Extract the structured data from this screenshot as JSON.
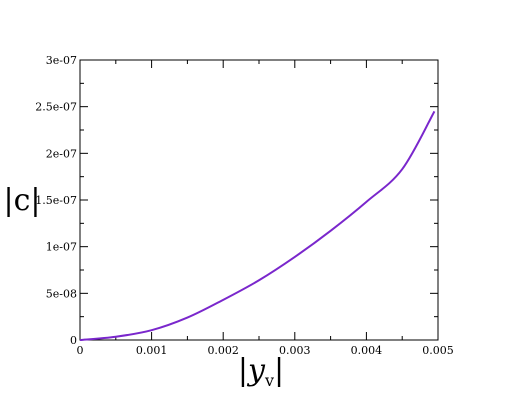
{
  "chart_data": {
    "type": "line",
    "title": "",
    "xlabel": "|y_v|",
    "xlabel_parts": {
      "bar_left": "|",
      "var": "y",
      "sub": "v",
      "bar_right": "|"
    },
    "ylabel": "|c|",
    "xlim": [
      0,
      0.005
    ],
    "ylim": [
      0,
      3e-07
    ],
    "grid": false,
    "legend": "none",
    "x_major_ticks": [
      0,
      0.001,
      0.002,
      0.003,
      0.004,
      0.005
    ],
    "x_tick_labels": [
      "0",
      "0.001",
      "0.002",
      "0.003",
      "0.004",
      "0.005"
    ],
    "y_major_ticks": [
      0,
      5e-08,
      1e-07,
      1.5e-07,
      2e-07,
      2.5e-07,
      3e-07
    ],
    "y_tick_labels": [
      "0",
      "5e-08",
      "1e-07",
      "1.5e-07",
      "2e-07",
      "2.5e-07",
      "3e-07"
    ],
    "series": [
      {
        "color": "#7a27cc",
        "x": [
          0,
          0.0005,
          0.001,
          0.0015,
          0.002,
          0.0025,
          0.003,
          0.0035,
          0.004,
          0.0045,
          0.00495
        ],
        "y": [
          0,
          3.5e-09,
          1.05e-08,
          2.4e-08,
          4.3e-08,
          6.4e-08,
          8.9e-08,
          1.17e-07,
          1.48e-07,
          1.83e-07,
          2.45e-07
        ]
      }
    ]
  }
}
